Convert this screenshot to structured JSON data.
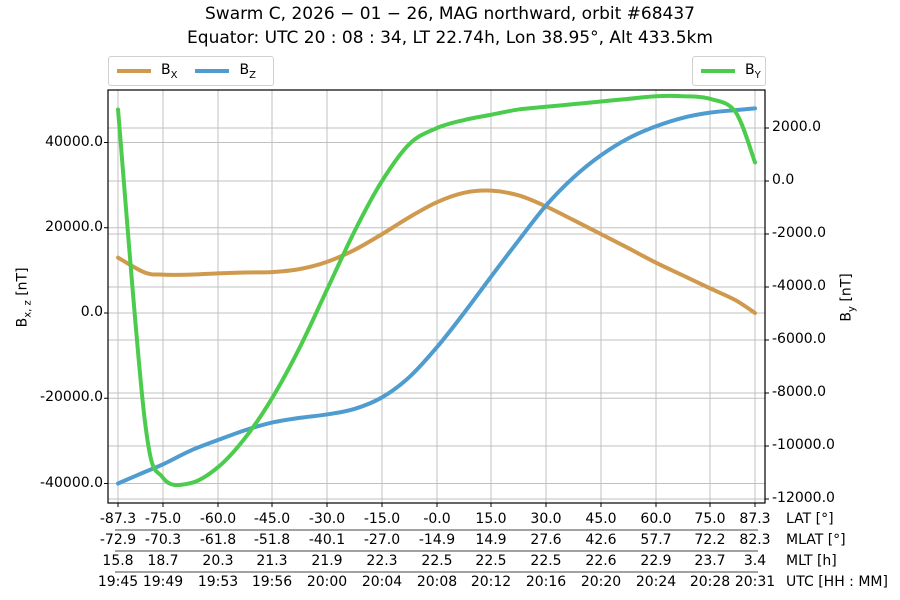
{
  "title": {
    "line1": "Swarm C,  2026 − 01 − 26,  MAG northward,  orbit #68437",
    "line2": "Equator:  UTC 20 : 08 : 34,  LT 22.74h,  Lon 38.95°,  Alt 433.5km"
  },
  "legend_left": [
    {
      "label": "B",
      "sub": "X",
      "color": "#d09a4e"
    },
    {
      "label": "B",
      "sub": "Z",
      "color": "#4f9cd0"
    }
  ],
  "legend_right": [
    {
      "label": "B",
      "sub": "Y",
      "color": "#4ccc4c"
    }
  ],
  "axes": {
    "left_label": "B",
    "left_label_sub": "x, z",
    "left_label_unit": " [nT]",
    "right_label": "B",
    "right_label_sub": "y",
    "right_label_unit": " [nT]",
    "left_ticks": [
      "40000.0",
      "20000.0",
      "0.0",
      "-20000.0",
      "-40000.0"
    ],
    "right_ticks": [
      "2000.0",
      "0.0",
      "-2000.0",
      "-4000.0",
      "-6000.0",
      "-8000.0",
      "-10000.0",
      "-12000.0"
    ]
  },
  "x_rows": {
    "lat": {
      "name": "LAT [°]",
      "values": [
        "-87.3",
        "-75.0",
        "-60.0",
        "-45.0",
        "-30.0",
        "-15.0",
        "-0.0",
        "15.0",
        "30.0",
        "45.0",
        "60.0",
        "75.0",
        "87.3"
      ]
    },
    "mlat": {
      "name": "MLAT [°]",
      "values": [
        "-72.9",
        "-70.3",
        "-61.8",
        "-51.8",
        "-40.1",
        "-27.0",
        "-14.9",
        "14.9",
        "27.6",
        "42.6",
        "57.7",
        "72.2",
        "82.3"
      ]
    },
    "mlt": {
      "name": "MLT [h]",
      "values": [
        "15.8",
        "18.7",
        "20.3",
        "21.3",
        "21.9",
        "22.3",
        "22.5",
        "22.5",
        "22.5",
        "22.6",
        "22.9",
        "23.7",
        "3.4"
      ]
    },
    "utc": {
      "name": "UTC [HH : MM]",
      "values": [
        "19:45",
        "19:49",
        "19:53",
        "19:56",
        "20:00",
        "20:04",
        "20:08",
        "20:12",
        "20:16",
        "20:20",
        "20:24",
        "20:28",
        "20:31"
      ]
    }
  },
  "chart_data": {
    "type": "line",
    "title": "Swarm C, 2026-01-26, MAG northward, orbit #68437 / Equator: UTC 20:08:34, LT 22.74h, Lon 38.95°, Alt 433.5km",
    "xlabel": "LAT [°] / MLAT [°] / MLT [h] / UTC [HH:MM]",
    "ylabel": "Bx,z [nT]",
    "ylabel_right": "By [nT]",
    "ylim": [
      -44000,
      52000
    ],
    "ylim_right": [
      -12000,
      3200
    ],
    "grid": true,
    "x": [
      -87.3,
      -80,
      -75,
      -67.5,
      -60,
      -52.5,
      -45,
      -37.5,
      -30,
      -22.5,
      -15,
      -7.5,
      0,
      7.5,
      15,
      22.5,
      30,
      37.5,
      45,
      52.5,
      60,
      67.5,
      75,
      82,
      87.3
    ],
    "series": [
      {
        "name": "B_X",
        "axis": "left",
        "color": "#d09a4e",
        "values": [
          13000,
          9500,
          9000,
          9000,
          9300,
          9500,
          9600,
          10300,
          12000,
          14800,
          18500,
          22500,
          26000,
          28200,
          28700,
          27600,
          25000,
          21800,
          18500,
          15200,
          11800,
          8800,
          5800,
          3000,
          0
        ]
      },
      {
        "name": "B_Z",
        "axis": "left",
        "color": "#4f9cd0",
        "values": [
          -40000,
          -37300,
          -35500,
          -32300,
          -29800,
          -27500,
          -25700,
          -24600,
          -23800,
          -22500,
          -19800,
          -15000,
          -8000,
          0,
          8500,
          17000,
          25200,
          31800,
          37000,
          41000,
          43800,
          45800,
          47000,
          47600,
          48000
        ]
      },
      {
        "name": "B_Y",
        "axis": "right",
        "color": "#4ccc4c",
        "values": [
          2700,
          -9000,
          -11200,
          -11400,
          -10800,
          -9700,
          -8200,
          -6300,
          -4100,
          -1900,
          0,
          1400,
          2000,
          2300,
          2500,
          2700,
          2800,
          2900,
          3000,
          3100,
          3200,
          3200,
          3100,
          2600,
          700
        ]
      }
    ]
  }
}
